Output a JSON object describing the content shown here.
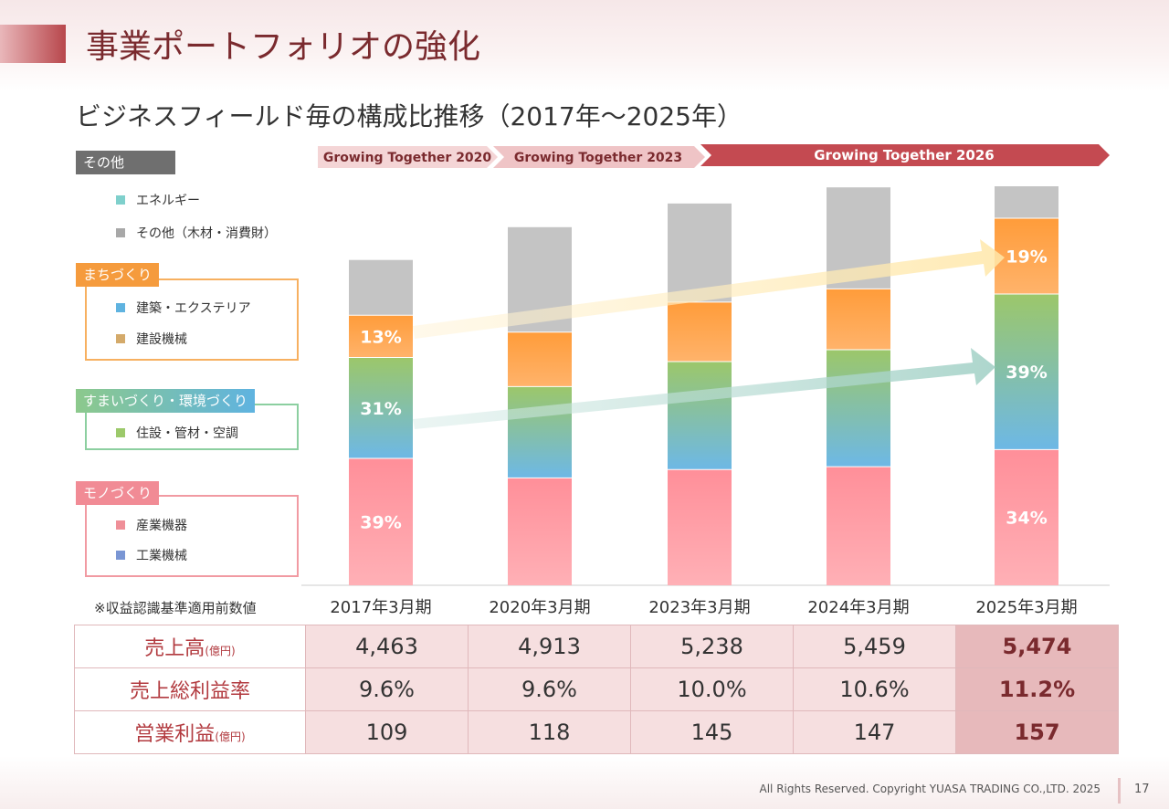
{
  "page": {
    "title": "事業ポートフォリオの強化",
    "subtitle": "ビジネスフィールド毎の構成比推移（2017年～2025年）",
    "footer": "All Rights Reserved. Copyright  YUASA TRADING CO.,LTD. 2025",
    "page_number": "17",
    "note": "※収益認識基準適用前数値"
  },
  "legend": {
    "other": {
      "label": "その他",
      "items": [
        "エネルギー",
        "その他（木材・消費財）"
      ]
    },
    "machi": {
      "label": "まちづくり",
      "items": [
        "建築・エクステリア",
        "建設機械"
      ]
    },
    "sumai": {
      "label": "すまいづくり・環境づくり",
      "items": [
        "住設・管材・空調"
      ]
    },
    "mono": {
      "label": "モノづくり",
      "items": [
        "産業機器",
        "工業機械"
      ]
    }
  },
  "plans": [
    "Growing Together 2020",
    "Growing Together 2023",
    "Growing Together 2026"
  ],
  "colors": {
    "energy": "#7fd0cc",
    "other": "#a8a8a8",
    "kenchiku": "#5fb3e0",
    "kensetsu": "#d4aa6a",
    "jusetsu": "#9cc96b",
    "sangyo": "#ef8f98",
    "kogyo": "#7a96d4",
    "seg_other": "#c6c6c6",
    "seg_machi": "#ffa54d",
    "seg_sumai": "#7fbb8a",
    "seg_mono": "#ff9aa3"
  },
  "chart_data": {
    "type": "bar",
    "stacked": true,
    "categories": [
      "2017年3月期",
      "2020年3月期",
      "2023年3月期",
      "2024年3月期",
      "2025年3月期"
    ],
    "series": [
      {
        "name": "モノづくり",
        "values": [
          1741,
          1473,
          1587,
          1627,
          1861
        ]
      },
      {
        "name": "すまいづくり・環境づくり",
        "values": [
          1384,
          1253,
          1482,
          1605,
          2135
        ]
      },
      {
        "name": "まちづくり",
        "values": [
          580,
          747,
          815,
          834,
          1040
        ]
      },
      {
        "name": "その他",
        "values": [
          758,
          1440,
          1354,
          1393,
          438
        ]
      }
    ],
    "bar_heights": [
      4463,
      4913,
      5238,
      5459,
      5474
    ],
    "data_labels": {
      "2017年3月期": {
        "モノづくり": "39%",
        "すまいづくり・環境づくり": "31%",
        "まちづくり": "13%"
      },
      "2025年3月期": {
        "モノづくり": "34%",
        "すまいづくり・環境づくり": "39%",
        "まちづくり": "19%"
      }
    },
    "ylim": [
      0,
      5474
    ]
  },
  "table": {
    "rows": [
      {
        "label": "売上高",
        "unit": "(億円)",
        "values": [
          "4,463",
          "4,913",
          "5,238",
          "5,459",
          "5,474"
        ]
      },
      {
        "label": "売上総利益率",
        "unit": "",
        "values": [
          "9.6%",
          "9.6%",
          "10.0%",
          "10.6%",
          "11.2%"
        ]
      },
      {
        "label": "営業利益",
        "unit": "(億円)",
        "values": [
          "109",
          "118",
          "145",
          "147",
          "157"
        ]
      }
    ]
  }
}
